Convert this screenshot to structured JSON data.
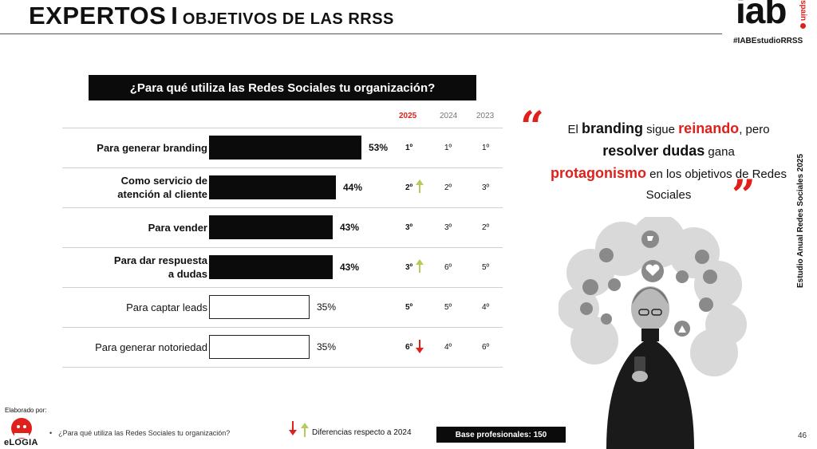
{
  "header": {
    "title_main": "EXPERTOS",
    "title_separator": "I",
    "title_sub": "OBJETIVOS DE LAS RRSS"
  },
  "logo": {
    "text": "iab",
    "subtext": "spain"
  },
  "hashtag": "#IABEstudioRRSS",
  "question": "¿Para qué utiliza las Redes Sociales tu organización?",
  "columns": {
    "y2025": "2025",
    "y2024": "2024",
    "y2023": "2023"
  },
  "chart_data": {
    "type": "bar",
    "orientation": "horizontal",
    "title": "¿Para qué utiliza las Redes Sociales tu organización?",
    "categories": [
      "Para generar branding",
      "Como servicio de atención al cliente",
      "Para vender",
      "Para dar respuesta a dudas",
      "Para captar leads",
      "Para generar notoriedad"
    ],
    "series": [
      {
        "values": [
          53,
          44,
          43,
          43,
          35,
          35
        ]
      }
    ],
    "rows": [
      {
        "label_lines": [
          "Para generar branding"
        ],
        "value": 53,
        "value_label": "53%",
        "highlight": true,
        "rank_2025": "1º",
        "rank_2024": "1º",
        "rank_2023": "1º",
        "trend": "none"
      },
      {
        "label_lines": [
          "Como servicio de",
          "atención al cliente"
        ],
        "value": 44,
        "value_label": "44%",
        "highlight": true,
        "rank_2025": "2º",
        "rank_2024": "2º",
        "rank_2023": "3º",
        "trend": "up"
      },
      {
        "label_lines": [
          "Para vender"
        ],
        "value": 43,
        "value_label": "43%",
        "highlight": true,
        "rank_2025": "3º",
        "rank_2024": "3º",
        "rank_2023": "2º",
        "trend": "none"
      },
      {
        "label_lines": [
          "Para dar respuesta",
          "a dudas"
        ],
        "value": 43,
        "value_label": "43%",
        "highlight": true,
        "rank_2025": "3º",
        "rank_2024": "6º",
        "rank_2023": "5º",
        "trend": "up"
      },
      {
        "label_lines": [
          "Para captar leads"
        ],
        "value": 35,
        "value_label": "35%",
        "highlight": false,
        "rank_2025": "5º",
        "rank_2024": "5º",
        "rank_2023": "4º",
        "trend": "none"
      },
      {
        "label_lines": [
          "Para generar notoriedad"
        ],
        "value": 35,
        "value_label": "35%",
        "highlight": false,
        "rank_2025": "6º",
        "rank_2024": "4º",
        "rank_2023": "6º",
        "trend": "down"
      }
    ],
    "xlim": [
      0,
      60
    ],
    "colors": {
      "filled": "#0b0b0b",
      "outline": "#222222",
      "up": "#b5cc5a",
      "down": "#e0201b"
    }
  },
  "quote": {
    "part1": "El ",
    "hl1": "branding",
    "part2": " sigue ",
    "hl2": "reinando",
    "part3": ", pero ",
    "hl3": "resolver dudas",
    "part4": " gana ",
    "hl4": "protagonismo",
    "part5": " en los objetivos de Redes Sociales"
  },
  "vertical_caption": "Estudio Anual Redes Sociales 2025",
  "footer": {
    "elaborado": "Elaborado por:",
    "brand": "eLOGIA",
    "footnote": "¿Para qué utiliza las Redes Sociales tu organización?",
    "bullet": "•",
    "legend": "Diferencias respecto a 2024",
    "base": "Base profesionales: 150",
    "page": "46"
  },
  "colors": {
    "accent": "#e0201b",
    "dark": "#0b0b0b"
  }
}
